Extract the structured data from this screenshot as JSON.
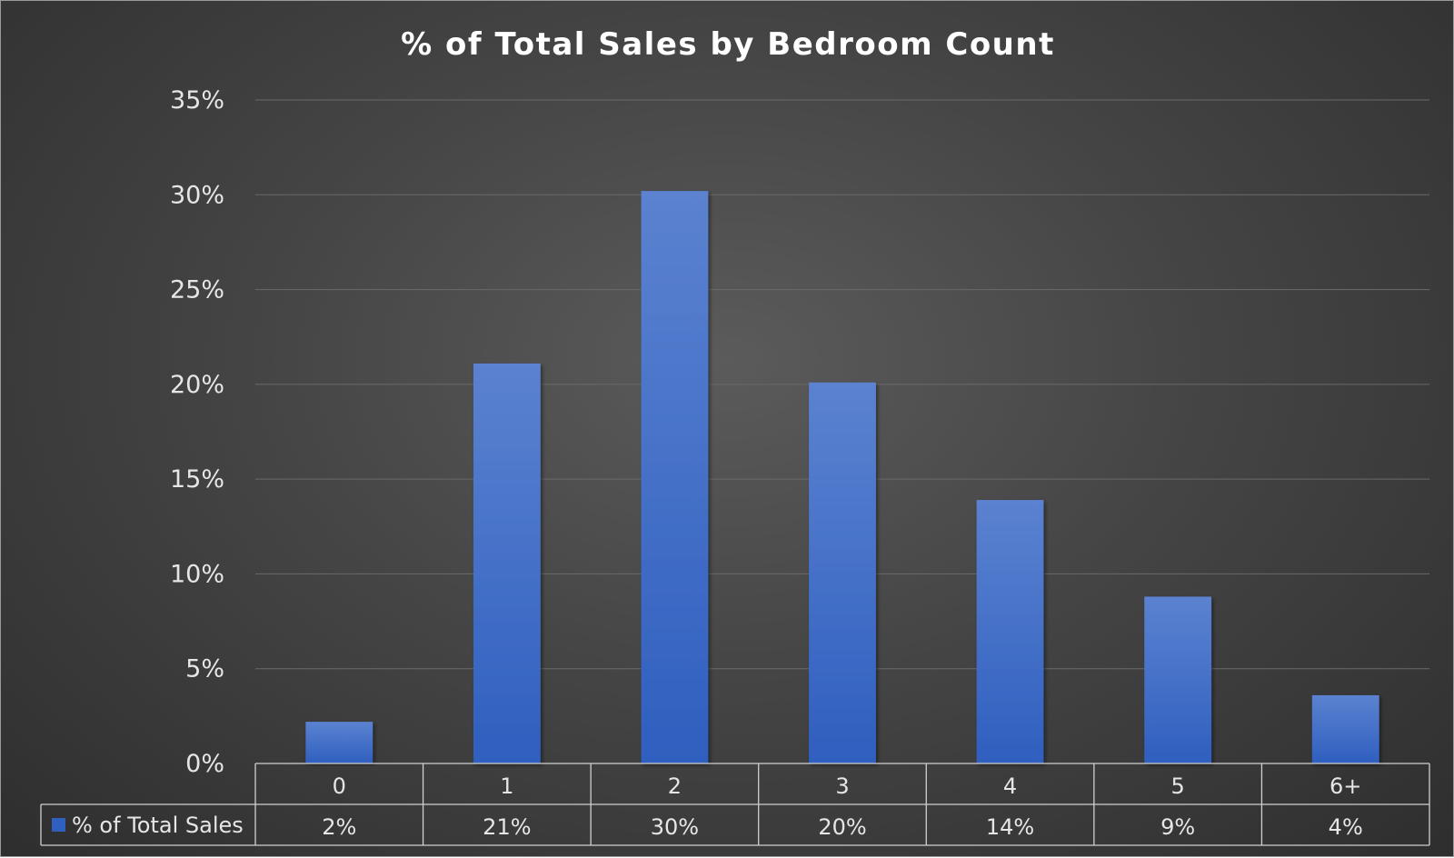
{
  "chart_data": {
    "type": "bar",
    "title": "% of Total Sales by Bedroom Count",
    "categories": [
      "0",
      "1",
      "2",
      "3",
      "4",
      "5",
      "6+"
    ],
    "series": [
      {
        "name": "% of Total Sales",
        "values": [
          2.2,
          21.1,
          30.2,
          20.1,
          13.9,
          8.8,
          3.6
        ],
        "data_labels": [
          "2%",
          "21%",
          "30%",
          "20%",
          "14%",
          "9%",
          "4%"
        ]
      }
    ],
    "ylim": [
      0,
      35
    ],
    "yticks": [
      0,
      5,
      10,
      15,
      20,
      25,
      30,
      35
    ],
    "ytick_labels": [
      "0%",
      "5%",
      "10%",
      "15%",
      "20%",
      "25%",
      "30%",
      "35%"
    ],
    "grid": true,
    "legend": "data table",
    "colors": {
      "bar_top": "#5b82d0",
      "bar_bottom": "#2f5fbf",
      "background": "#4a4a4a"
    }
  }
}
